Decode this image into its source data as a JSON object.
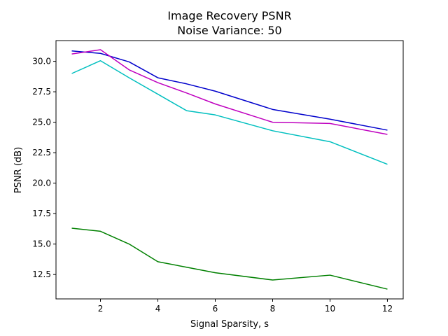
{
  "chart_data": {
    "type": "line",
    "title": "Image Recovery PSNR",
    "subtitle": "Noise Variance: 50",
    "xlabel": "Signal Sparsity, s",
    "ylabel": "PSNR (dB)",
    "xlim": [
      0.45,
      12.55
    ],
    "ylim": [
      10.5,
      31.7
    ],
    "xticks": [
      2,
      4,
      6,
      8,
      10,
      12
    ],
    "yticks": [
      12.5,
      15.0,
      17.5,
      20.0,
      22.5,
      25.0,
      27.5,
      30.0
    ],
    "grid": false,
    "series": [
      {
        "color": "#0000cc",
        "x": [
          1,
          2,
          3,
          4,
          5,
          6,
          8,
          10,
          12
        ],
        "y": [
          30.85,
          30.65,
          29.95,
          28.65,
          28.15,
          27.55,
          26.05,
          25.25,
          24.35
        ]
      },
      {
        "color": "#bf00bf",
        "x": [
          1,
          2,
          3,
          4,
          5,
          6,
          8,
          10,
          12
        ],
        "y": [
          30.6,
          30.95,
          29.3,
          28.25,
          27.4,
          26.5,
          25.0,
          24.9,
          24.0
        ]
      },
      {
        "color": "#00bfbf",
        "x": [
          1,
          2,
          3,
          4,
          5,
          6,
          8,
          10,
          12
        ],
        "y": [
          29.0,
          30.05,
          28.65,
          27.3,
          25.95,
          25.6,
          24.3,
          23.4,
          21.55
        ]
      },
      {
        "color": "#008000",
        "x": [
          1,
          2,
          3,
          4,
          5,
          6,
          8,
          10,
          12
        ],
        "y": [
          16.3,
          16.05,
          15.0,
          13.55,
          13.1,
          12.65,
          12.05,
          12.45,
          11.3
        ]
      }
    ]
  }
}
